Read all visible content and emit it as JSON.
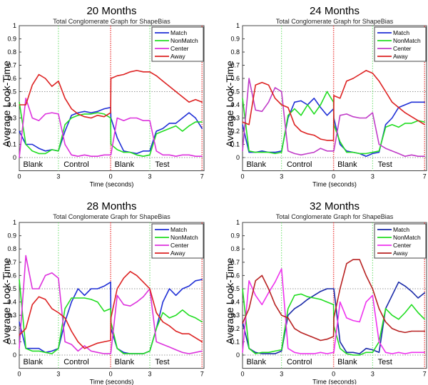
{
  "chart_data": [
    {
      "type": "line",
      "title": "20 Months",
      "subtitle": "Total Conglomerate Graph for ShapeBias",
      "xlabel": "Time (seconds)",
      "ylabel": "Average Look-Time",
      "ylim": [
        -0.1,
        1
      ],
      "yticks": [
        "0",
        "0.1",
        "0.2",
        "0.3",
        "0.4",
        "0.5",
        "0.6",
        "0.7",
        "0.8",
        "0.9",
        "1"
      ],
      "xtick_labels": [
        "0",
        "3",
        "0",
        "3",
        "7"
      ],
      "phase_labels": [
        "Blank",
        "Control",
        "Blank",
        "Test"
      ],
      "legend_position": "top-right",
      "t": [
        0,
        0.5,
        1,
        1.5,
        2,
        2.5,
        3,
        3.5,
        4,
        4.5,
        5,
        5.5,
        6,
        6.5,
        7
      ],
      "series": [
        {
          "name": "Match",
          "color": "#1f2fd6",
          "control": [
            0.2,
            0.1,
            0.1,
            0.07,
            0.05,
            0.06,
            0.05,
            0.2,
            0.32,
            0.34,
            0.35,
            0.34,
            0.35,
            0.37,
            0.38
          ],
          "test": [
            0.3,
            0.15,
            0.05,
            0.04,
            0.03,
            0.05,
            0.05,
            0.2,
            0.22,
            0.26,
            0.26,
            0.3,
            0.34,
            0.3,
            0.22
          ]
        },
        {
          "name": "NonMatch",
          "color": "#22dd22",
          "control": [
            0.42,
            0.1,
            0.05,
            0.03,
            0.03,
            0.06,
            0.05,
            0.25,
            0.3,
            0.32,
            0.33,
            0.33,
            0.34,
            0.33,
            0.3
          ],
          "test": [
            0.1,
            0.06,
            0.04,
            0.04,
            0.02,
            0.01,
            0.02,
            0.18,
            0.2,
            0.22,
            0.24,
            0.2,
            0.24,
            0.27,
            0.27
          ]
        },
        {
          "name": "Center",
          "color": "#dd33dd",
          "control": [
            0,
            0.45,
            0.3,
            0.28,
            0.33,
            0.34,
            0.33,
            0.1,
            0.02,
            0.01,
            0.02,
            0.01,
            0.01,
            0.02,
            0.02
          ],
          "test": [
            0.02,
            0.3,
            0.28,
            0.3,
            0.3,
            0.28,
            0.28,
            0.05,
            0.02,
            0.02,
            0.01,
            0.02,
            0.02,
            0.01,
            0.01
          ]
        },
        {
          "name": "Away",
          "color": "#dd2222",
          "control": [
            0.4,
            0.4,
            0.55,
            0.63,
            0.6,
            0.54,
            0.58,
            0.45,
            0.37,
            0.33,
            0.31,
            0.3,
            0.32,
            0.31,
            0.34
          ],
          "test": [
            0.6,
            0.62,
            0.63,
            0.65,
            0.66,
            0.65,
            0.65,
            0.62,
            0.58,
            0.54,
            0.5,
            0.46,
            0.42,
            0.44,
            0.42
          ]
        }
      ]
    },
    {
      "type": "line",
      "title": "24 Months",
      "subtitle": "Total Conglomerate Graph for ShapeBias",
      "xlabel": "Time (seconds)",
      "ylabel": "Average Look-Time",
      "ylim": [
        -0.1,
        1
      ],
      "yticks": [
        "0",
        "0.1",
        "0.2",
        "0.3",
        "0.4",
        "0.5",
        "0.6",
        "0.7",
        "0.8",
        "0.9",
        "1"
      ],
      "xtick_labels": [
        "0",
        "3",
        "0",
        "3",
        "7"
      ],
      "phase_labels": [
        "Blank",
        "Control",
        "Blank",
        "Test"
      ],
      "legend_position": "top-right",
      "t": [
        0,
        0.5,
        1,
        1.5,
        2,
        2.5,
        3,
        3.5,
        4,
        4.5,
        5,
        5.5,
        6,
        6.5,
        7
      ],
      "series": [
        {
          "name": "Match",
          "color": "#1f2fd6",
          "control": [
            0.25,
            0.04,
            0.04,
            0.05,
            0.04,
            0.04,
            0.05,
            0.3,
            0.42,
            0.43,
            0.4,
            0.45,
            0.38,
            0.32,
            0.37
          ],
          "test": [
            0.3,
            0.1,
            0.05,
            0.04,
            0.03,
            0.01,
            0.03,
            0.04,
            0.25,
            0.3,
            0.38,
            0.4,
            0.42,
            0.42,
            0.42
          ]
        },
        {
          "name": "NonMatch",
          "color": "#22dd22",
          "control": [
            0.45,
            0.05,
            0.04,
            0.04,
            0.04,
            0.03,
            0.04,
            0.32,
            0.37,
            0.32,
            0.4,
            0.33,
            0.4,
            0.5,
            0.42
          ],
          "test": [
            0.25,
            0.12,
            0.04,
            0.04,
            0.03,
            0.03,
            0.04,
            0.05,
            0.23,
            0.25,
            0.23,
            0.26,
            0.26,
            0.28,
            0.27
          ]
        },
        {
          "name": "Center",
          "color": "#c03cc8",
          "control": [
            0.05,
            0.6,
            0.36,
            0.35,
            0.42,
            0.53,
            0.5,
            0.05,
            0.03,
            0.02,
            0.03,
            0.04,
            0.07,
            0.05,
            0.05
          ],
          "test": [
            0.05,
            0.32,
            0.33,
            0.31,
            0.3,
            0.3,
            0.34,
            0.1,
            0.07,
            0.05,
            0.03,
            0.01,
            0.02,
            0.01,
            0.01
          ]
        },
        {
          "name": "Away",
          "color": "#dd2222",
          "control": [
            0.27,
            0.25,
            0.55,
            0.57,
            0.55,
            0.45,
            0.4,
            0.38,
            0.25,
            0.2,
            0.18,
            0.17,
            0.14,
            0.13,
            0.13
          ],
          "test": [
            0.47,
            0.45,
            0.58,
            0.6,
            0.63,
            0.66,
            0.64,
            0.58,
            0.5,
            0.42,
            0.38,
            0.34,
            0.31,
            0.28,
            0.25
          ]
        }
      ]
    },
    {
      "type": "line",
      "title": "28 Months",
      "subtitle": "Total Conglomerate Graph for ShapeBias",
      "xlabel": "Time (seconds)",
      "ylabel": "Average Look-Time",
      "ylim": [
        -0.1,
        1
      ],
      "yticks": [
        "0",
        "0.1",
        "0.2",
        "0.3",
        "0.4",
        "0.5",
        "0.6",
        "0.7",
        "0.8",
        "0.9",
        "1"
      ],
      "xtick_labels": [
        "0",
        "3",
        "0",
        "3",
        "7"
      ],
      "phase_labels": [
        "Blank",
        "Control",
        "Blank",
        "Test"
      ],
      "legend_position": "top-right",
      "t": [
        0,
        0.5,
        1,
        1.5,
        2,
        2.5,
        3,
        3.5,
        4,
        4.5,
        5,
        5.5,
        6,
        6.5,
        7
      ],
      "series": [
        {
          "name": "Match",
          "color": "#1f2fd6",
          "control": [
            0.25,
            0.05,
            0.05,
            0.05,
            0.02,
            0.03,
            0.05,
            0.25,
            0.4,
            0.5,
            0.45,
            0.5,
            0.5,
            0.52,
            0.55
          ],
          "test": [
            0.2,
            0.05,
            0.02,
            0.01,
            0.01,
            0.01,
            0.03,
            0.2,
            0.4,
            0.5,
            0.45,
            0.5,
            0.52,
            0.56,
            0.57
          ]
        },
        {
          "name": "NonMatch",
          "color": "#22dd22",
          "control": [
            0.57,
            0.05,
            0.03,
            0.03,
            0.02,
            0.01,
            0.05,
            0.35,
            0.43,
            0.43,
            0.43,
            0.42,
            0.4,
            0.33,
            0.35
          ],
          "test": [
            0.25,
            0.05,
            0.01,
            0.01,
            0.01,
            0.01,
            0.03,
            0.2,
            0.32,
            0.28,
            0.3,
            0.34,
            0.3,
            0.28,
            0.25
          ]
        },
        {
          "name": "Center",
          "color": "#dd33dd",
          "control": [
            0.05,
            0.75,
            0.5,
            0.5,
            0.6,
            0.62,
            0.58,
            0.1,
            0.08,
            0.03,
            0.07,
            0.03,
            0.02,
            0.01,
            0.01
          ],
          "test": [
            0.02,
            0.45,
            0.38,
            0.37,
            0.4,
            0.44,
            0.5,
            0.1,
            0.08,
            0.06,
            0.04,
            0.02,
            0.01,
            0.02,
            0.03
          ]
        },
        {
          "name": "Away",
          "color": "#dd2222",
          "control": [
            0.15,
            0.2,
            0.38,
            0.44,
            0.42,
            0.35,
            0.32,
            0.28,
            0.18,
            0.1,
            0.05,
            0.07,
            0.09,
            0.1,
            0.11
          ],
          "test": [
            0.28,
            0.5,
            0.58,
            0.63,
            0.6,
            0.55,
            0.5,
            0.32,
            0.25,
            0.22,
            0.18,
            0.16,
            0.16,
            0.13,
            0.1
          ]
        }
      ]
    },
    {
      "type": "line",
      "title": "32 Months",
      "subtitle": "Total Conglomerate Graph for ShapeBias",
      "xlabel": "Time (seconds)",
      "ylabel": "Average Look-Time",
      "ylim": [
        -0.1,
        1
      ],
      "yticks": [
        "0",
        "0.1",
        "0.2",
        "0.3",
        "0.4",
        "0.5",
        "0.6",
        "0.7",
        "0.8",
        "0.9",
        "1"
      ],
      "xtick_labels": [
        "0",
        "3",
        "0",
        "3",
        "7"
      ],
      "phase_labels": [
        "Blank",
        "Control",
        "Blank",
        "Test"
      ],
      "legend_position": "top-right",
      "t": [
        0,
        0.5,
        1,
        1.5,
        2,
        2.5,
        3,
        3.5,
        4,
        4.5,
        5,
        5.5,
        6,
        6.5,
        7
      ],
      "series": [
        {
          "name": "Match",
          "color": "#1a2aa8",
          "control": [
            0.25,
            0.05,
            0.02,
            0.01,
            0.01,
            0.01,
            0.03,
            0.3,
            0.35,
            0.38,
            0.42,
            0.45,
            0.48,
            0.5,
            0.5
          ],
          "test": [
            0.5,
            0.1,
            0.02,
            0.02,
            0.01,
            0.05,
            0.04,
            0.02,
            0.35,
            0.45,
            0.55,
            0.52,
            0.48,
            0.43,
            0.47
          ]
        },
        {
          "name": "NonMatch",
          "color": "#22dd22",
          "control": [
            0.5,
            0.05,
            0.01,
            0.02,
            0.02,
            0.03,
            0.04,
            0.35,
            0.45,
            0.46,
            0.44,
            0.43,
            0.42,
            0.4,
            0.38
          ],
          "test": [
            0.22,
            0.05,
            0.01,
            0,
            0,
            0.02,
            0.02,
            0.1,
            0.35,
            0.3,
            0.27,
            0.32,
            0.38,
            0.32,
            0.27
          ]
        },
        {
          "name": "Center",
          "color": "#ee33ee",
          "control": [
            0.02,
            0.56,
            0.45,
            0.38,
            0.47,
            0.55,
            0.65,
            0.05,
            0.02,
            0.01,
            0.01,
            0.01,
            0.02,
            0.01,
            0.02
          ],
          "test": [
            0.02,
            0.4,
            0.28,
            0.26,
            0.25,
            0.4,
            0.45,
            0.1,
            0.02,
            0.01,
            0.02,
            0.01,
            0.02,
            0.02,
            0.02
          ]
        },
        {
          "name": "Away",
          "color": "#b82222",
          "control": [
            0.24,
            0.35,
            0.56,
            0.6,
            0.5,
            0.38,
            0.3,
            0.28,
            0.2,
            0.17,
            0.15,
            0.13,
            0.11,
            0.12,
            0.14
          ],
          "test": [
            0.28,
            0.5,
            0.69,
            0.72,
            0.72,
            0.6,
            0.5,
            0.35,
            0.25,
            0.2,
            0.18,
            0.17,
            0.18,
            0.18,
            0.18
          ]
        }
      ]
    }
  ]
}
